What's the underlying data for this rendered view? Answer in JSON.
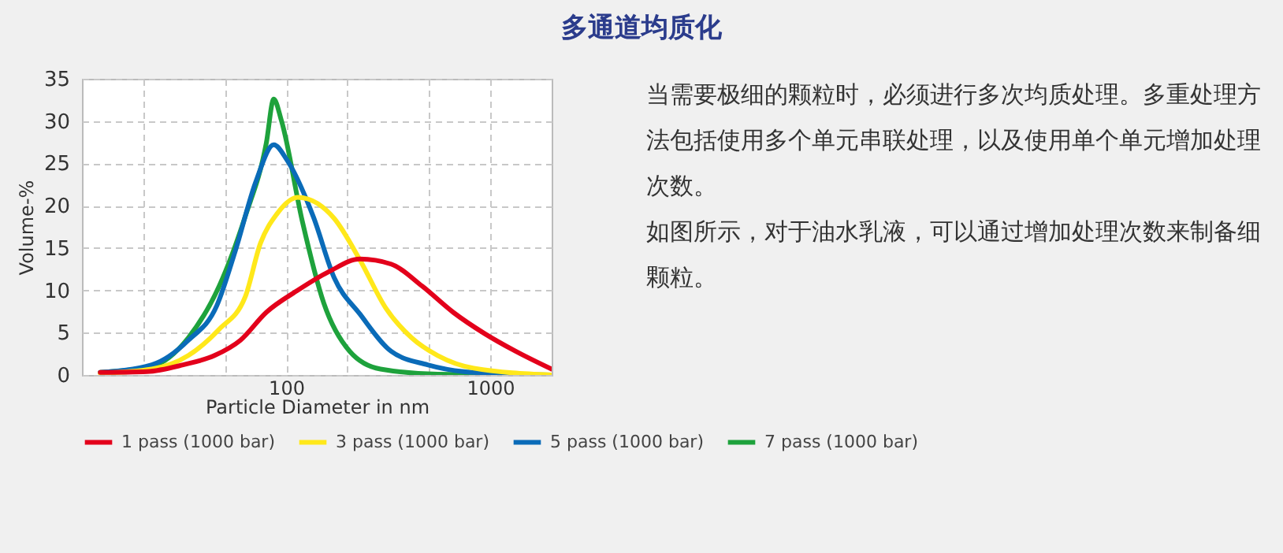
{
  "chart_data": {
    "type": "line",
    "title": "多通道均质化",
    "xlabel": "Particle Diameter in nm",
    "ylabel": "Volume-%",
    "log": "x",
    "grid": true,
    "legend": "bottom",
    "line_style": "solid",
    "xlim": [
      10,
      2000
    ],
    "ylim": [
      0,
      35
    ],
    "xticks": [
      {
        "value": 20,
        "label": null
      },
      {
        "value": 50,
        "label": null
      },
      100,
      {
        "value": 200,
        "label": null
      },
      {
        "value": 500,
        "label": null
      },
      1000
    ],
    "yticks": [
      0,
      5,
      10,
      15,
      20,
      25,
      30,
      35
    ],
    "series": [
      {
        "name": "1 pass (1000 bar)",
        "color": "#e3001b",
        "x": [
          12.3,
          20.8,
          31.3,
          44.6,
          59.7,
          80,
          114,
          162,
          230,
          327,
          464,
          659,
          937,
          1333,
          1995
        ],
        "values": [
          0.3,
          0.4,
          1.2,
          2.3,
          4.1,
          7.4,
          10.0,
          12.2,
          13.7,
          13.1,
          10.5,
          7.4,
          4.9,
          2.8,
          0.7
        ]
      },
      {
        "name": "3 pass (1000 bar)",
        "color": "#ffe81a",
        "x": [
          12.3,
          22,
          33.2,
          47,
          63,
          75,
          90,
          114,
          144,
          172,
          230,
          308,
          412,
          553,
          831,
          1995
        ],
        "values": [
          0.2,
          0.7,
          2.3,
          5.4,
          9.2,
          15.6,
          19.0,
          21.0,
          20.2,
          18.5,
          13.6,
          7.9,
          4.4,
          2.3,
          0.8,
          0
        ]
      },
      {
        "name": "5 pass (1000 bar)",
        "color": "#0a6bb8",
        "x": [
          12.3,
          22,
          33.2,
          45.8,
          56.3,
          71,
          87,
          101,
          136,
          172,
          230,
          327,
          493,
          741,
          1333,
          1995
        ],
        "values": [
          0.3,
          1.2,
          4.1,
          8.2,
          14.6,
          22.8,
          27.2,
          25.4,
          18.7,
          11.5,
          7.2,
          2.8,
          1.2,
          0.4,
          0.1,
          0
        ]
      },
      {
        "name": "7 pass (1000 bar)",
        "color": "#1ea23c",
        "x": [
          12.3,
          22,
          33.2,
          47,
          63,
          80,
          87,
          95,
          120,
          153,
          205,
          290,
          553,
          1333,
          1995
        ],
        "values": [
          0.3,
          1.0,
          4.4,
          10.5,
          18.7,
          27.4,
          32.6,
          30.0,
          18.2,
          8.5,
          2.8,
          0.7,
          0.1,
          0,
          0
        ]
      }
    ],
    "annotations": [
      "当需要极细的颗粒时，必须进行多次均质处理。多重处理方法包括使用多个单元串联处理，以及使用单个单元增加处理次数。",
      "如图所示，对于油水乳液，可以通过增加处理次数来制备细颗粒。"
    ]
  }
}
